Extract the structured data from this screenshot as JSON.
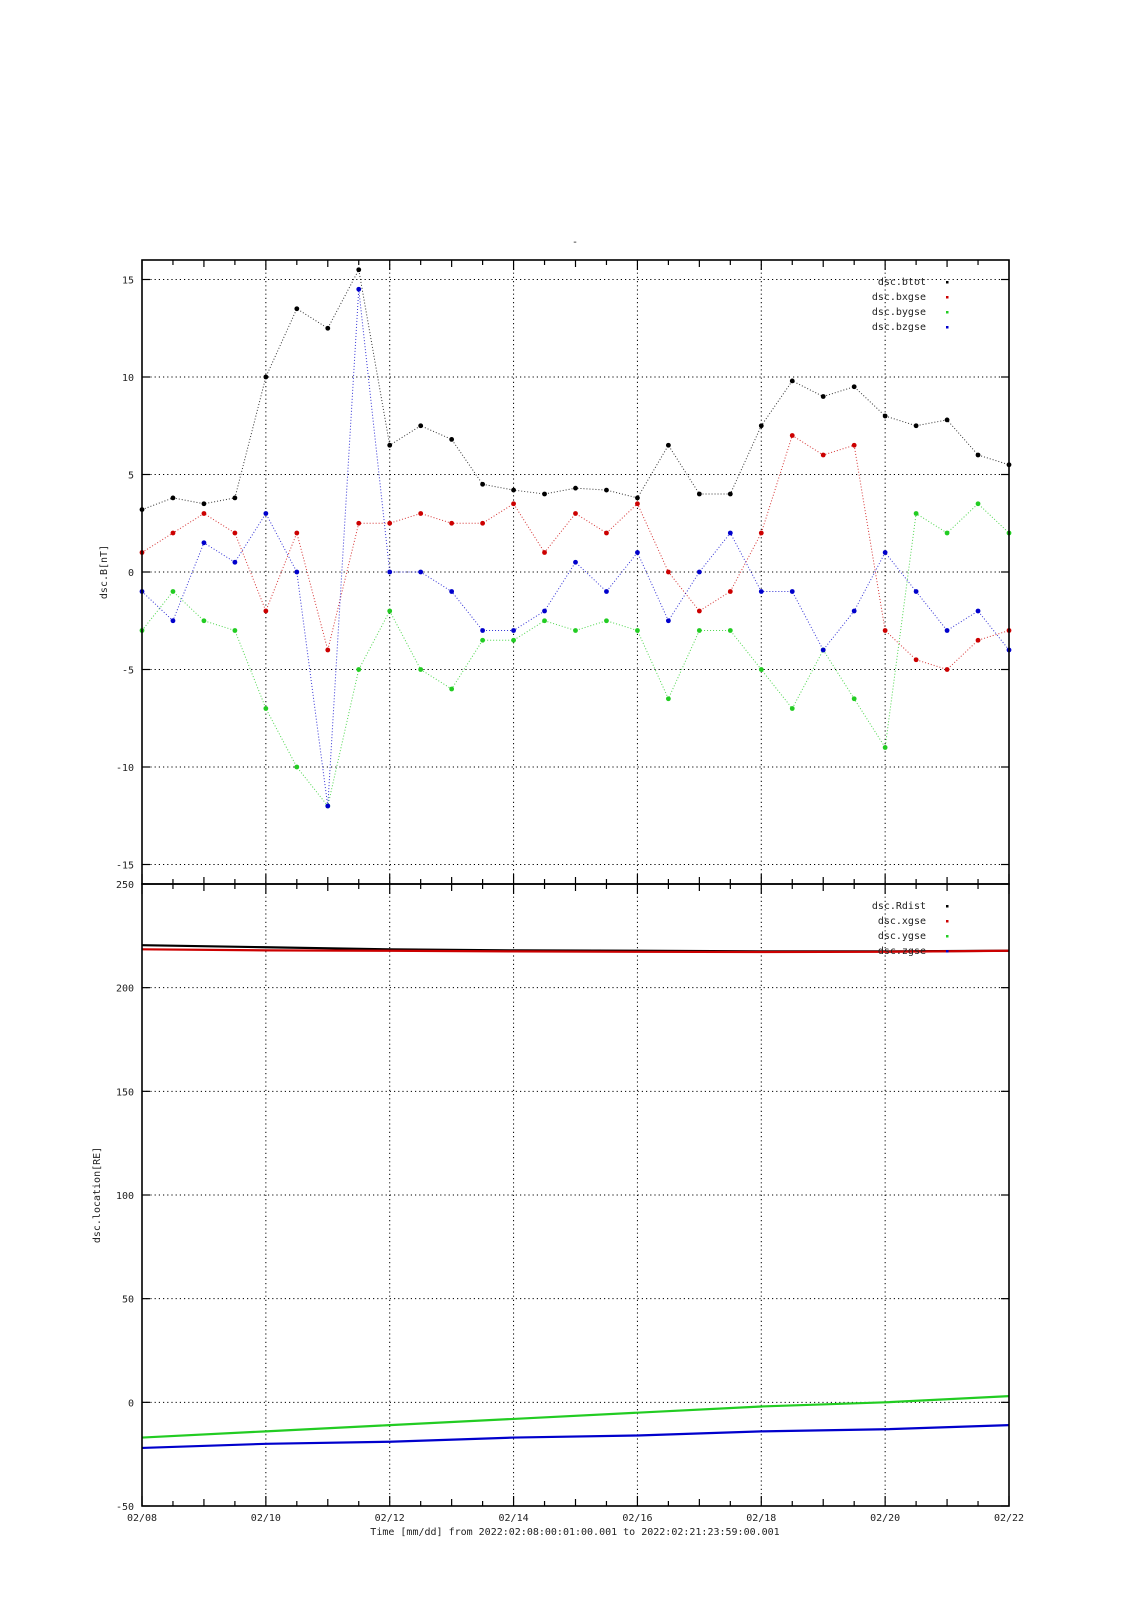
{
  "top_mark": "-",
  "colors": {
    "black": "#000000",
    "red": "#cc0000",
    "green": "#22cc22",
    "blue": "#0000cc"
  },
  "chart_data": [
    {
      "type": "scatter",
      "ylabel": "dsc.B[nT]",
      "ylim": [
        -16,
        16
      ],
      "xlim": [
        "2022-02-08",
        "2022-02-22"
      ],
      "yticks": [
        "15",
        "10",
        "5",
        "0",
        "-5",
        "-10",
        "-15"
      ],
      "legend_position": "top-right",
      "grid": true,
      "x": [
        "02/08",
        "02/08 12h",
        "02/09",
        "02/09 12h",
        "02/10",
        "02/10 12h",
        "02/11",
        "02/11 12h",
        "02/12",
        "02/12 12h",
        "02/13",
        "02/13 12h",
        "02/14",
        "02/14 12h",
        "02/15",
        "02/15 12h",
        "02/16",
        "02/16 12h",
        "02/17",
        "02/17 12h",
        "02/18",
        "02/18 12h",
        "02/19",
        "02/19 12h",
        "02/20",
        "02/20 12h",
        "02/21",
        "02/21 12h",
        "02/22"
      ],
      "series": [
        {
          "name": "dsc.btot",
          "color": "#000000",
          "values": [
            3.2,
            3.8,
            3.5,
            3.8,
            10.0,
            13.5,
            12.5,
            15.5,
            6.5,
            7.5,
            6.8,
            4.5,
            4.2,
            4.0,
            4.3,
            4.2,
            3.8,
            6.5,
            4.0,
            4.0,
            7.5,
            9.8,
            9.0,
            9.5,
            8.0,
            7.5,
            7.8,
            6.0,
            5.5
          ]
        },
        {
          "name": "dsc.bxgse",
          "color": "#cc0000",
          "values": [
            1.0,
            2.0,
            3.0,
            2.0,
            -2.0,
            2.0,
            -4.0,
            2.5,
            2.5,
            3.0,
            2.5,
            2.5,
            3.5,
            1.0,
            3.0,
            2.0,
            3.5,
            0.0,
            -2.0,
            -1.0,
            2.0,
            7.0,
            6.0,
            6.5,
            -3.0,
            -4.5,
            -5.0,
            -3.5,
            -3.0
          ]
        },
        {
          "name": "dsc.bygse",
          "color": "#22cc22",
          "values": [
            -3.0,
            -1.0,
            -2.5,
            -3.0,
            -7.0,
            -10.0,
            -12.0,
            -5.0,
            -2.0,
            -5.0,
            -6.0,
            -3.5,
            -3.5,
            -2.5,
            -3.0,
            -2.5,
            -3.0,
            -6.5,
            -3.0,
            -3.0,
            -5.0,
            -7.0,
            -4.0,
            -6.5,
            -9.0,
            3.0,
            2.0,
            3.5,
            2.0
          ]
        },
        {
          "name": "dsc.bzgse",
          "color": "#0000cc",
          "values": [
            -1.0,
            -2.5,
            1.5,
            0.5,
            3.0,
            0.0,
            -12.0,
            14.5,
            0.0,
            0.0,
            -1.0,
            -3.0,
            -3.0,
            -2.0,
            0.5,
            -1.0,
            1.0,
            -2.5,
            0.0,
            2.0,
            -1.0,
            -1.0,
            -4.0,
            -2.0,
            1.0,
            -1.0,
            -3.0,
            -2.0,
            -4.0
          ]
        }
      ]
    },
    {
      "type": "line",
      "ylabel": "dsc.location[RE]",
      "ylim": [
        -50,
        250
      ],
      "xlim": [
        "2022-02-08",
        "2022-02-22"
      ],
      "yticks": [
        "250",
        "200",
        "150",
        "100",
        "50",
        "0",
        "-50"
      ],
      "xticks": [
        "02/08",
        "02/10",
        "02/12",
        "02/14",
        "02/16",
        "02/18",
        "02/20",
        "02/22"
      ],
      "xlabel": "Time [mm/dd]  from 2022:02:08:00:01:00.001  to  2022:02:21:23:59:00.001",
      "legend_position": "top-right",
      "grid": true,
      "x": [
        "02/08",
        "02/10",
        "02/12",
        "02/14",
        "02/16",
        "02/18",
        "02/20",
        "02/22"
      ],
      "series": [
        {
          "name": "dsc.Rdist",
          "color": "#000000",
          "values": [
            220.5,
            219.5,
            218.5,
            218.0,
            217.8,
            217.5,
            217.5,
            217.8
          ]
        },
        {
          "name": "dsc.xgse",
          "color": "#cc0000",
          "values": [
            218.5,
            218.0,
            217.8,
            217.5,
            217.3,
            217.2,
            217.3,
            217.8
          ]
        },
        {
          "name": "dsc.ygse",
          "color": "#22cc22",
          "values": [
            -17,
            -14,
            -11,
            -8,
            -5,
            -2,
            0,
            3
          ]
        },
        {
          "name": "dsc.zgse",
          "color": "#0000cc",
          "values": [
            -22,
            -20,
            -19,
            -17,
            -16,
            -14,
            -13,
            -11
          ]
        }
      ]
    }
  ]
}
